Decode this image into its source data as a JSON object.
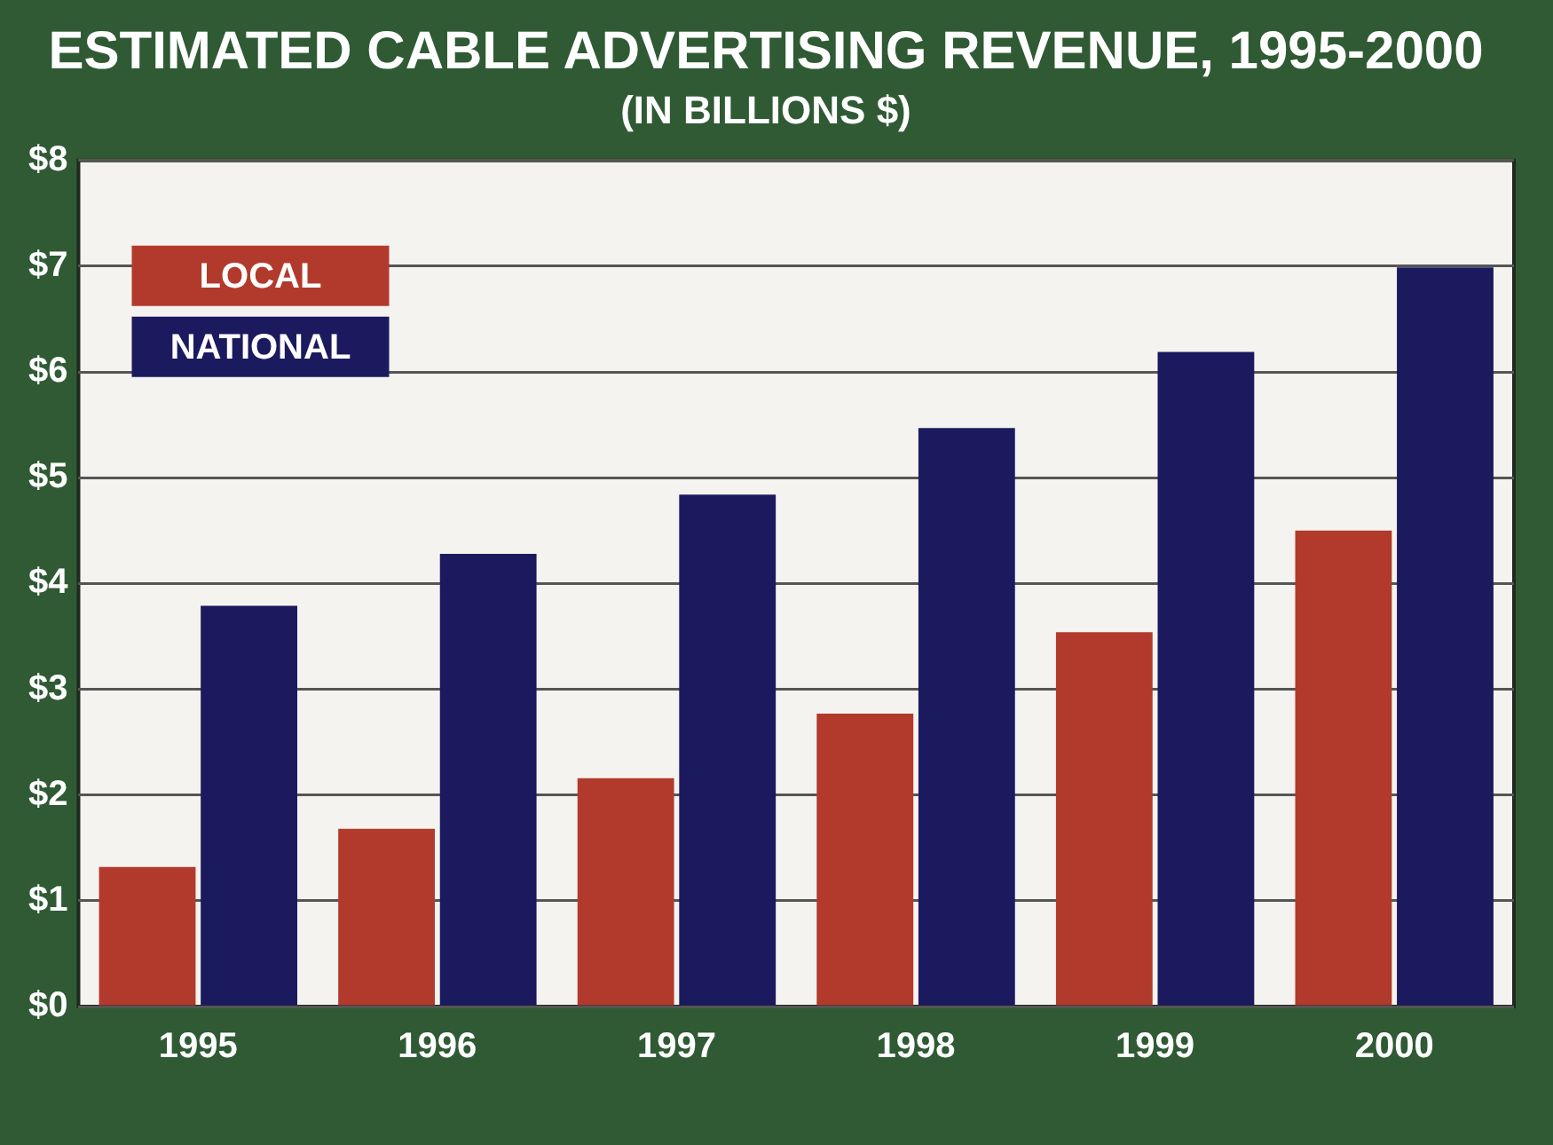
{
  "chart_data": {
    "type": "bar",
    "title": "ESTIMATED CABLE ADVERTISING REVENUE, 1995-2000",
    "subtitle": "(IN BILLIONS $)",
    "categories": [
      "1995",
      "1996",
      "1997",
      "1998",
      "1999",
      "2000"
    ],
    "series": [
      {
        "name": "LOCAL",
        "color": "#b23a2c",
        "values": [
          1.32,
          1.68,
          2.16,
          2.77,
          3.54,
          4.5
        ]
      },
      {
        "name": "NATIONAL",
        "color": "#1c1a5e",
        "values": [
          3.79,
          4.28,
          4.84,
          5.47,
          6.19,
          6.99
        ]
      }
    ],
    "ylim": [
      0,
      8
    ],
    "yticks": [
      {
        "value": 0,
        "label": "$0"
      },
      {
        "value": 1,
        "label": "$1"
      },
      {
        "value": 2,
        "label": "$2"
      },
      {
        "value": 3,
        "label": "$3"
      },
      {
        "value": 4,
        "label": "$4"
      },
      {
        "value": 5,
        "label": "$5"
      },
      {
        "value": 6,
        "label": "$6"
      },
      {
        "value": 7,
        "label": "$7"
      },
      {
        "value": 8,
        "label": "$8"
      }
    ],
    "grid": "y",
    "legend": "top left"
  }
}
